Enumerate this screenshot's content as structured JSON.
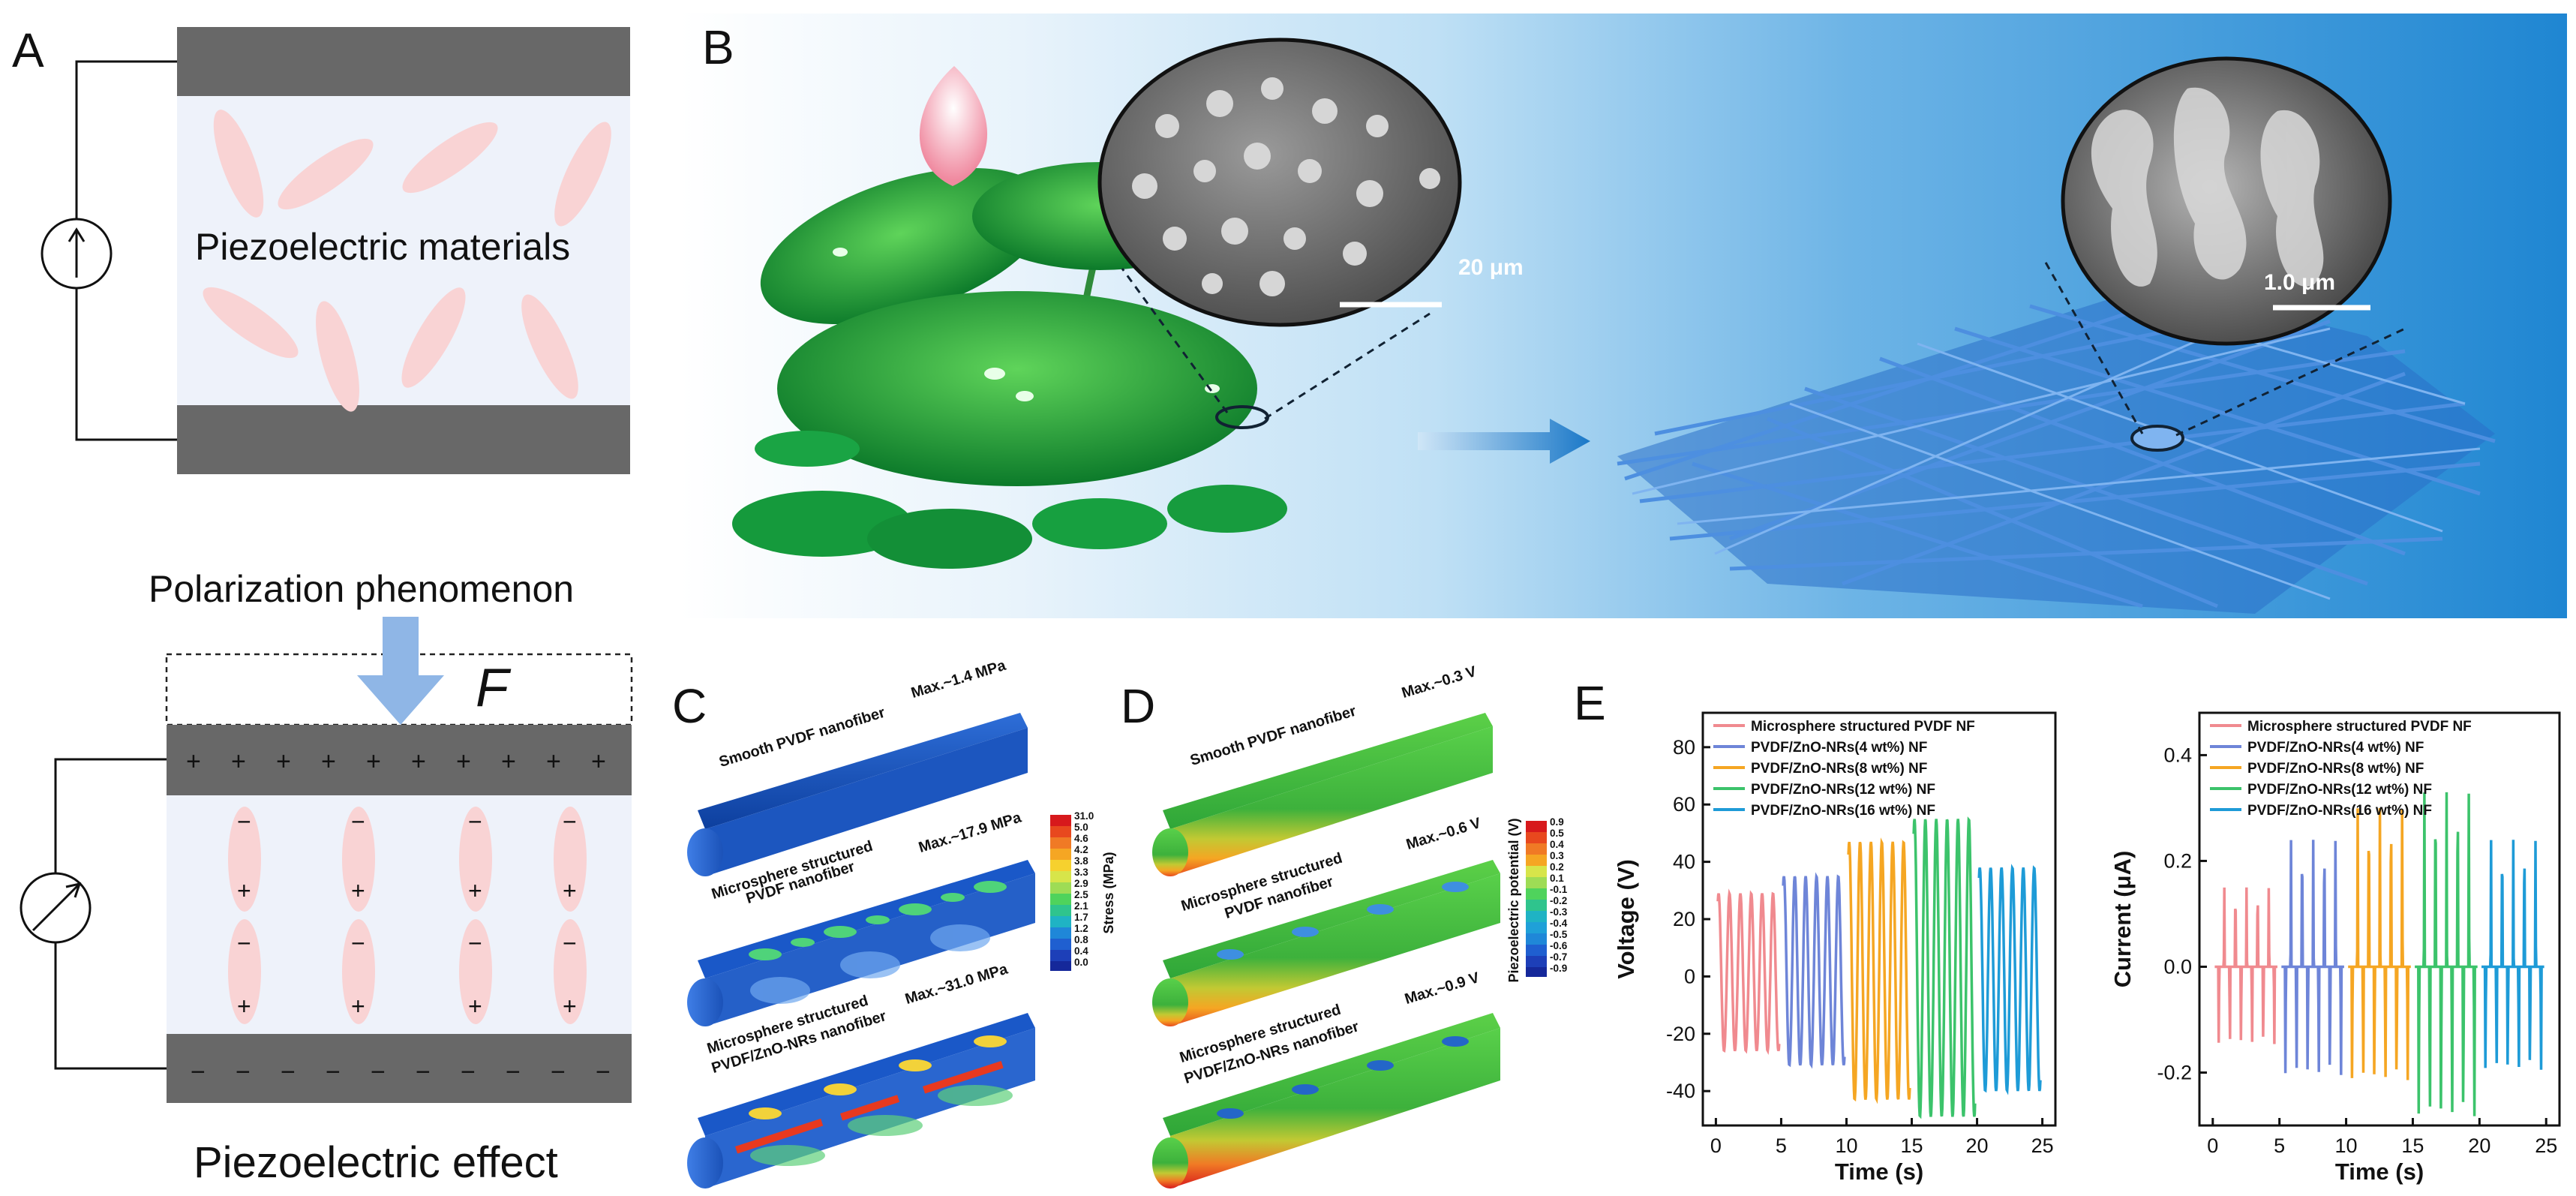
{
  "panels": {
    "A": {
      "label": "A",
      "top_title": "Piezoelectric materials",
      "polarization": "Polarization phenomenon",
      "force": "F",
      "bottom_title": "Piezoelectric effect"
    },
    "B": {
      "label": "B",
      "scale_left": "20 μm",
      "scale_right": "1.0 μm"
    },
    "C": {
      "label": "C",
      "items": [
        {
          "name": "Smooth PVDF nanofiber",
          "max": "Max.~1.4 MPa"
        },
        {
          "name_line1": "Microsphere structured",
          "name_line2": "PVDF nanofiber",
          "max": "Max.~17.9 MPa"
        },
        {
          "name_line1": "Microsphere structured",
          "name_line2": "PVDF/ZnO-NRs nanofiber",
          "max": "Max.~31.0 MPa"
        }
      ],
      "colorbar_title": "Stress (MPa)",
      "colorbar_ticks": [
        "31.0",
        "5.0",
        "4.6",
        "4.2",
        "3.8",
        "3.3",
        "2.9",
        "2.5",
        "2.1",
        "1.7",
        "1.2",
        "0.8",
        "0.4",
        "0.0"
      ]
    },
    "D": {
      "label": "D",
      "items": [
        {
          "name": "Smooth PVDF nanofiber",
          "max": "Max.~0.3 V"
        },
        {
          "name_line1": "Microsphere structured",
          "name_line2": "PVDF nanofiber",
          "max": "Max.~0.6 V"
        },
        {
          "name_line1": "Microsphere structured",
          "name_line2": "PVDF/ZnO-NRs nanofiber",
          "max": "Max.~0.9 V"
        }
      ],
      "colorbar_title": "Piezoelectric potential (V)",
      "colorbar_ticks": [
        "0.9",
        "0.5",
        "0.4",
        "0.3",
        "0.2",
        "0.1",
        "-0.1",
        "-0.2",
        "-0.3",
        "-0.4",
        "-0.5",
        "-0.6",
        "-0.7",
        "-0.9"
      ]
    },
    "E": {
      "label": "E"
    }
  },
  "chart_data": [
    {
      "type": "line",
      "xlabel": "Time (s)",
      "ylabel": "Voltage (V)",
      "xlim": [
        -1,
        26
      ],
      "ylim": [
        -52,
        92
      ],
      "xticks": [
        0,
        5,
        10,
        15,
        20,
        25
      ],
      "yticks": [
        -40,
        -20,
        0,
        20,
        40,
        60,
        80
      ],
      "legend": "top-left",
      "series": [
        {
          "name": "Microsphere structured PVDF NF",
          "color": "#f08a8f",
          "start": 0,
          "end": 5,
          "peak": 29,
          "trough": -26,
          "cycles": 6
        },
        {
          "name": "PVDF/ZnO-NRs(4 wt%) NF",
          "color": "#6e85d8",
          "start": 5,
          "end": 10,
          "peak": 35,
          "trough": -31,
          "cycles": 6
        },
        {
          "name": "PVDF/ZnO-NRs(8 wt%) NF",
          "color": "#f5a623",
          "start": 10,
          "end": 15,
          "peak": 47,
          "trough": -43,
          "cycles": 6
        },
        {
          "name": "PVDF/ZnO-NRs(12 wt%) NF",
          "color": "#3cc36b",
          "start": 15,
          "end": 20,
          "peak": 55,
          "trough": -49,
          "cycles": 6
        },
        {
          "name": "PVDF/ZnO-NRs(16 wt%) NF",
          "color": "#1e9bd7",
          "start": 20,
          "end": 25,
          "peak": 38,
          "trough": -40,
          "cycles": 6
        }
      ]
    },
    {
      "type": "line",
      "xlabel": "Time (s)",
      "ylabel": "Current (μA)",
      "xlim": [
        -1,
        26
      ],
      "ylim": [
        -0.3,
        0.48
      ],
      "xticks": [
        0,
        5,
        10,
        15,
        20,
        25
      ],
      "yticks": [
        -0.2,
        0.0,
        0.2,
        0.4
      ],
      "legend": "top-left",
      "series": [
        {
          "name": "Microsphere structured PVDF NF",
          "color": "#f08a8f",
          "start": 0,
          "end": 5,
          "peak": 0.15,
          "trough": -0.15,
          "cycles": 6
        },
        {
          "name": "PVDF/ZnO-NRs(4 wt%) NF",
          "color": "#6e85d8",
          "start": 5,
          "end": 10,
          "peak": 0.24,
          "trough": -0.21,
          "cycles": 6
        },
        {
          "name": "PVDF/ZnO-NRs(8 wt%) NF",
          "color": "#f5a623",
          "start": 10,
          "end": 15,
          "peak": 0.3,
          "trough": -0.22,
          "cycles": 6
        },
        {
          "name": "PVDF/ZnO-NRs(12 wt%) NF",
          "color": "#3cc36b",
          "start": 15,
          "end": 20,
          "peak": 0.33,
          "trough": -0.29,
          "cycles": 6
        },
        {
          "name": "PVDF/ZnO-NRs(16 wt%) NF",
          "color": "#1e9bd7",
          "start": 20,
          "end": 25,
          "peak": 0.24,
          "trough": -0.2,
          "cycles": 6
        }
      ]
    }
  ]
}
